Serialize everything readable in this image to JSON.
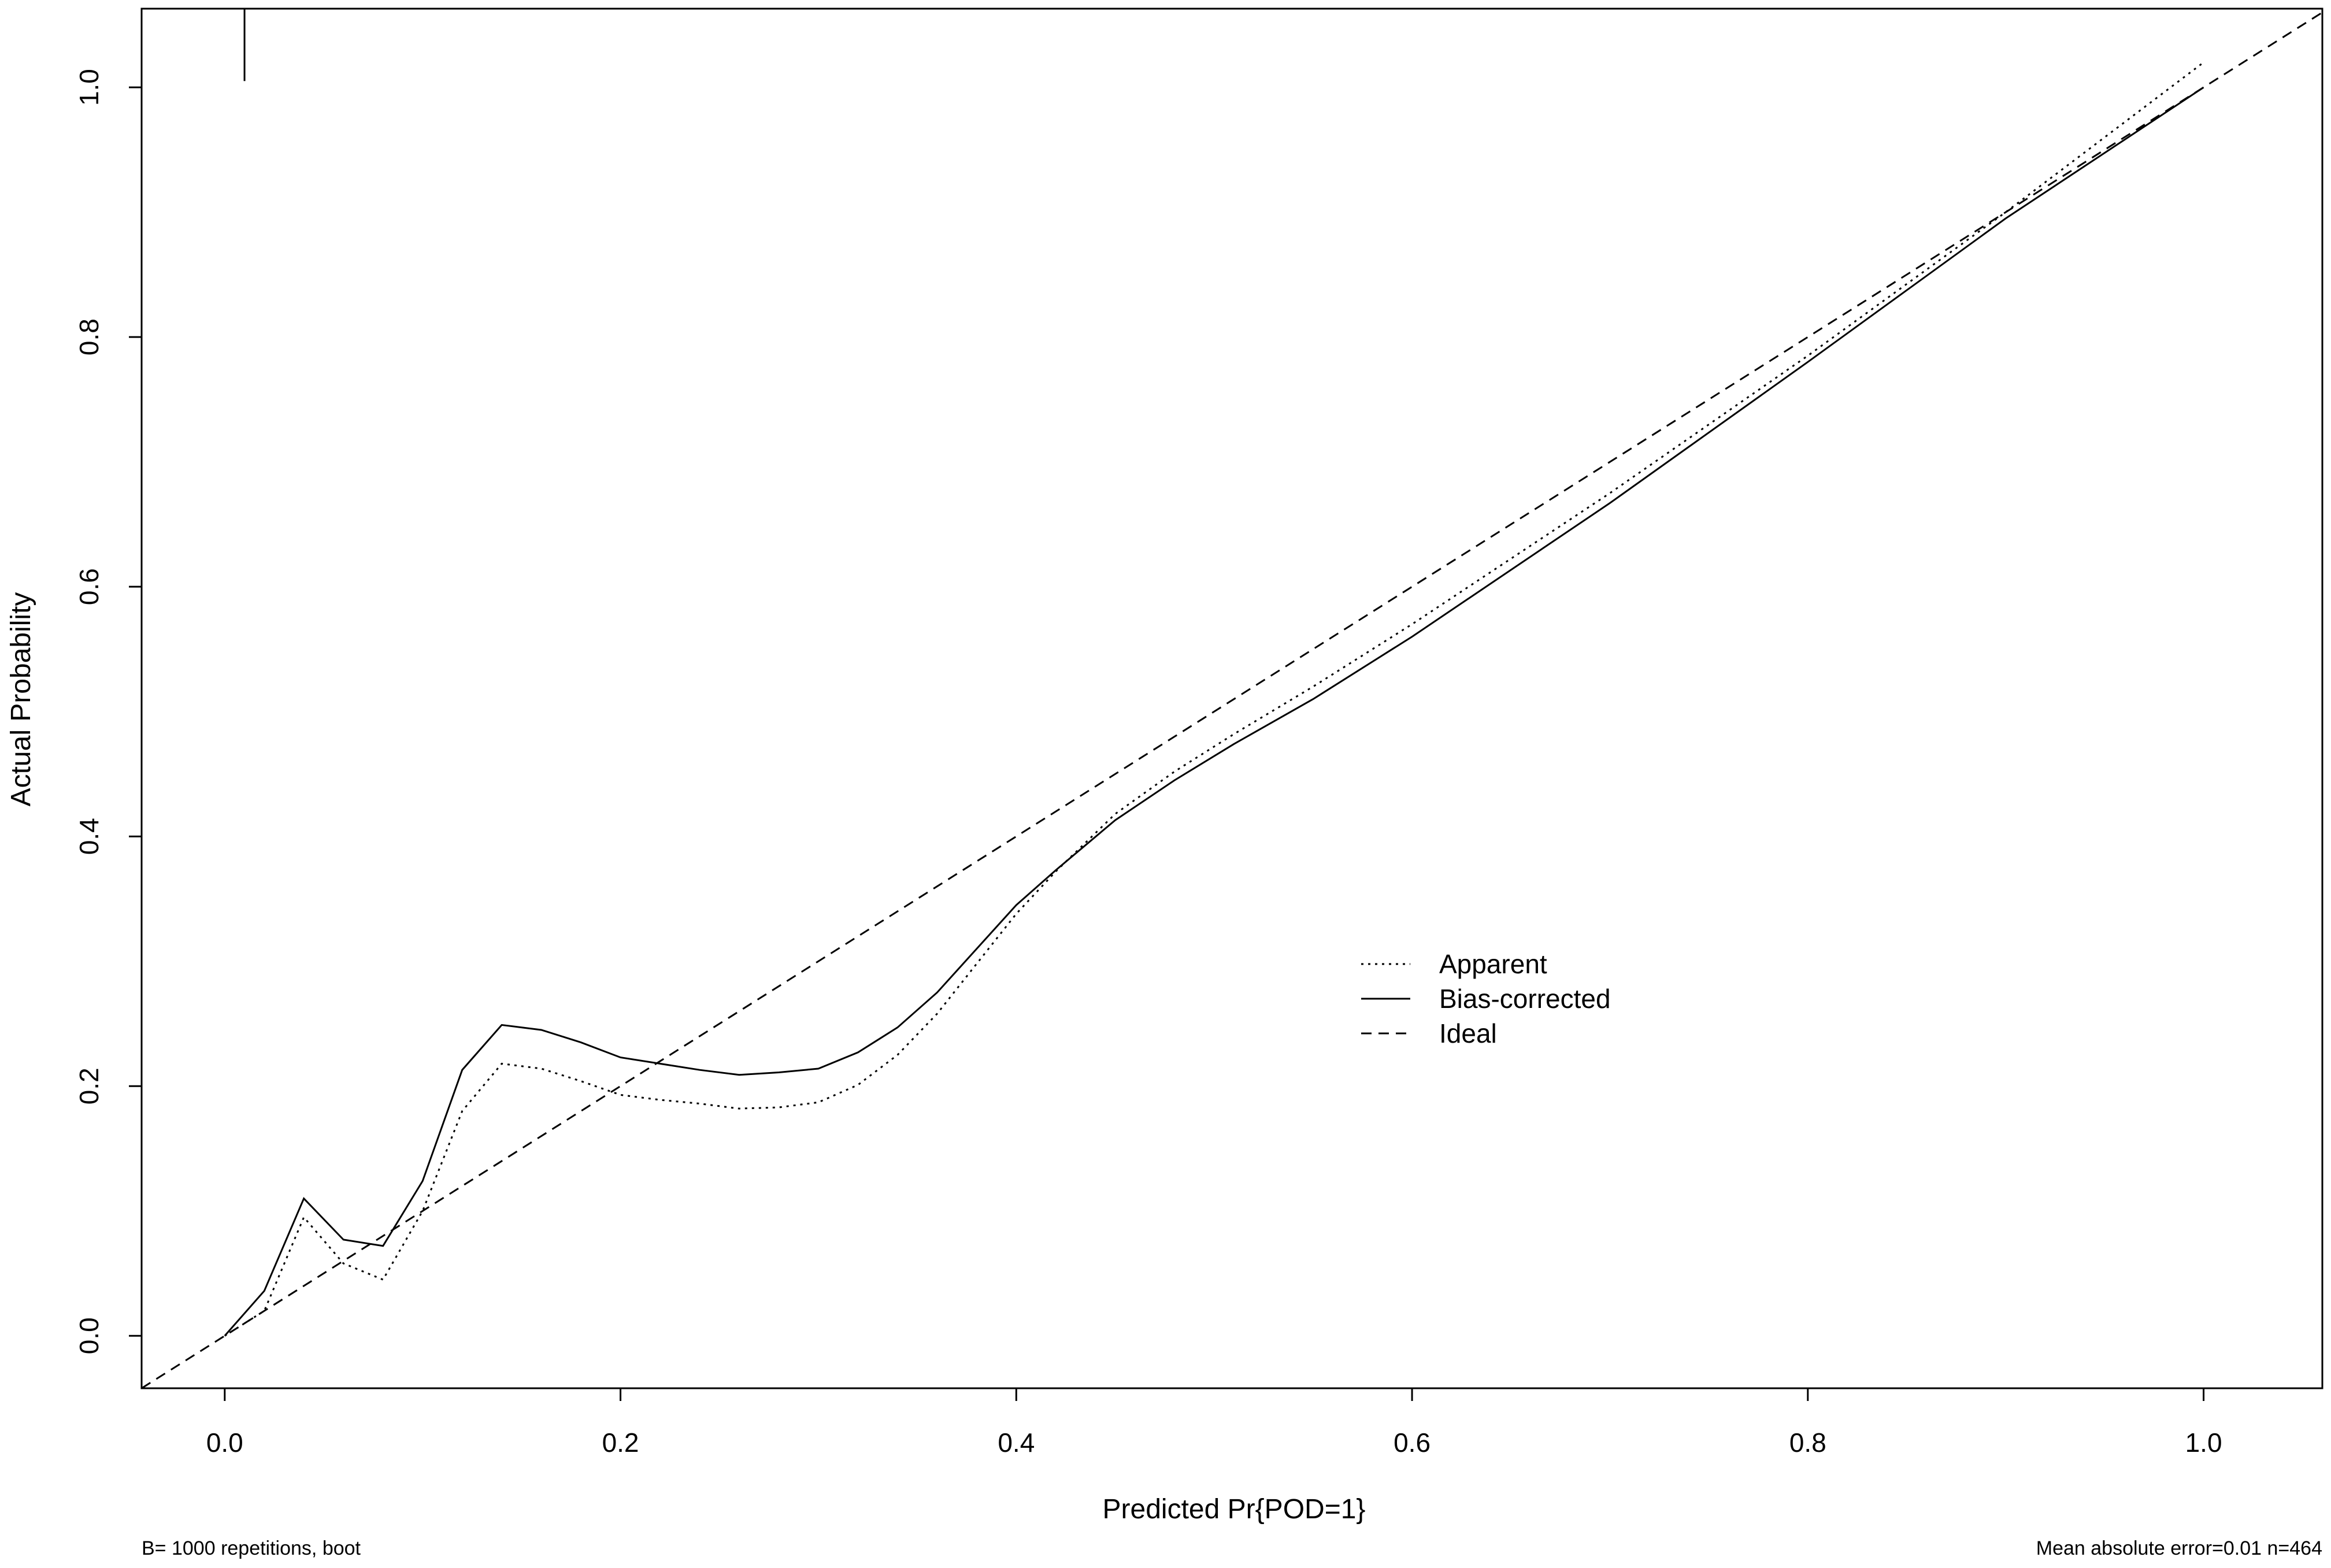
{
  "chart_data": {
    "type": "line",
    "title": "",
    "xlabel": "Predicted Pr{POD=1}",
    "ylabel": "Actual Probability",
    "xlim": [
      -0.042,
      1.06
    ],
    "ylim": [
      -0.042,
      1.063
    ],
    "xticks": [
      "0.0",
      "0.2",
      "0.4",
      "0.6",
      "0.8",
      "1.0"
    ],
    "yticks": [
      "0.0",
      "0.2",
      "0.4",
      "0.6",
      "0.8",
      "1.0"
    ],
    "grid": false,
    "legend_position": "center-right",
    "series": [
      {
        "name": "Apparent",
        "style": "dotted",
        "x": [
          0.0,
          0.02,
          0.04,
          0.06,
          0.08,
          0.1,
          0.12,
          0.14,
          0.16,
          0.18,
          0.2,
          0.22,
          0.24,
          0.26,
          0.28,
          0.3,
          0.32,
          0.34,
          0.36,
          0.38,
          0.4,
          0.42,
          0.45,
          0.48,
          0.51,
          0.55,
          0.6,
          0.7,
          0.8,
          0.9,
          1.0
        ],
        "y": [
          0.0,
          0.02,
          0.095,
          0.058,
          0.045,
          0.1,
          0.18,
          0.218,
          0.214,
          0.204,
          0.193,
          0.189,
          0.186,
          0.182,
          0.183,
          0.187,
          0.201,
          0.225,
          0.258,
          0.298,
          0.338,
          0.372,
          0.418,
          0.452,
          0.482,
          0.52,
          0.57,
          0.675,
          0.785,
          0.9,
          1.02
        ]
      },
      {
        "name": "Bias-corrected",
        "style": "solid",
        "x": [
          0.0,
          0.02,
          0.04,
          0.06,
          0.08,
          0.1,
          0.12,
          0.14,
          0.16,
          0.18,
          0.2,
          0.22,
          0.24,
          0.26,
          0.28,
          0.3,
          0.32,
          0.34,
          0.36,
          0.38,
          0.4,
          0.42,
          0.45,
          0.48,
          0.51,
          0.55,
          0.6,
          0.7,
          0.8,
          0.9,
          1.0
        ],
        "y": [
          0.0,
          0.036,
          0.11,
          0.077,
          0.072,
          0.124,
          0.213,
          0.249,
          0.245,
          0.235,
          0.223,
          0.218,
          0.213,
          0.209,
          0.211,
          0.214,
          0.227,
          0.247,
          0.275,
          0.31,
          0.345,
          0.373,
          0.413,
          0.445,
          0.474,
          0.51,
          0.56,
          0.667,
          0.78,
          0.895,
          1.0
        ]
      },
      {
        "name": "Ideal",
        "style": "dashed",
        "x": [
          -0.042,
          1.06
        ],
        "y": [
          -0.042,
          1.06
        ]
      }
    ],
    "rug": {
      "x": [
        0.01
      ],
      "from": 1.005,
      "to": 1.063
    },
    "footnotes": {
      "left": "B= 1000 repetitions, boot",
      "right": "Mean absolute error=0.01 n=464"
    }
  }
}
